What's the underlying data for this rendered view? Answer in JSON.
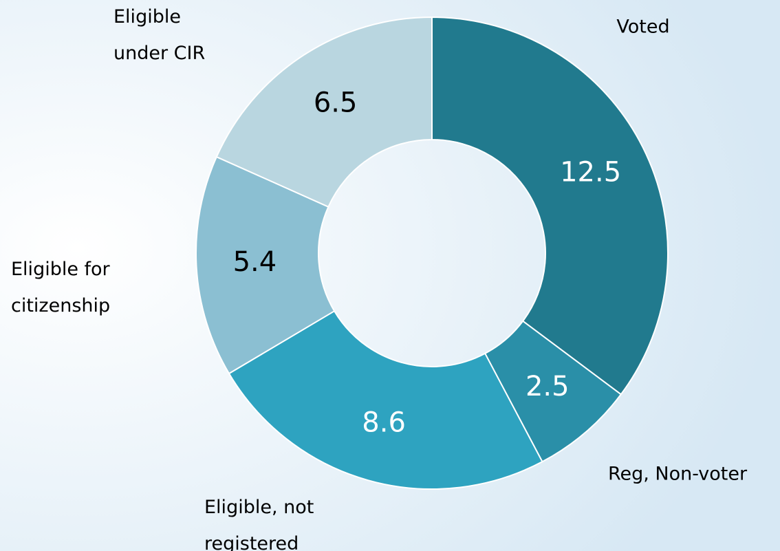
{
  "chart_data": {
    "type": "donut",
    "categories": [
      "Voted",
      "Reg, Non-voter",
      "Eligible, not\nregistered",
      "Eligible for\ncitizenship",
      "Eligible\nunder CIR"
    ],
    "values": [
      12.5,
      2.5,
      8.6,
      5.4,
      6.5
    ],
    "colors": [
      "#217a8e",
      "#2a8fa8",
      "#2ea3c0",
      "#8bbfd2",
      "#b9d6e0"
    ],
    "label_colors": [
      "#ffffff",
      "#ffffff",
      "#ffffff",
      "#000000",
      "#000000"
    ]
  }
}
